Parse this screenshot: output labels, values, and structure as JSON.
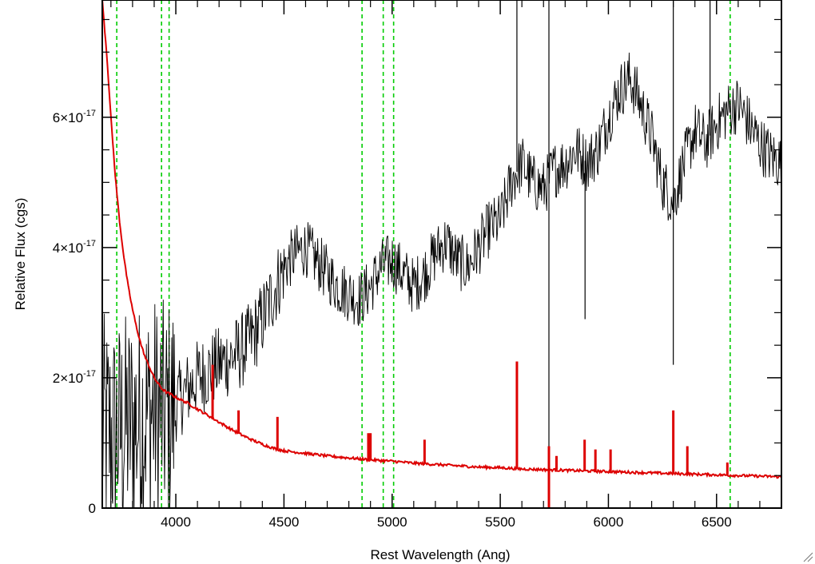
{
  "chart_data": {
    "type": "line",
    "title": "",
    "xlabel": "Rest Wavelength (Ang)",
    "ylabel": "Relative Flux (cgs)",
    "xlim": [
      3660,
      6800
    ],
    "ylim": [
      0,
      7.8e-17
    ],
    "x_ticks": [
      4000,
      4500,
      5000,
      5500,
      6000,
      6500
    ],
    "y_ticks": [
      {
        "value": 0,
        "mantissa": "0",
        "exponent": ""
      },
      {
        "value": 2e-17,
        "mantissa": "2×10",
        "exponent": "-17"
      },
      {
        "value": 4e-17,
        "mantissa": "4×10",
        "exponent": "-17"
      },
      {
        "value": 6e-17,
        "mantissa": "6×10",
        "exponent": "-17"
      }
    ],
    "grid": false,
    "colors": {
      "spectrum": "#000000",
      "error": "#dd0000",
      "lines": "#00cc00"
    },
    "reference_lines": [
      3727,
      3934,
      3969,
      4861,
      4959,
      5007,
      6563
    ],
    "series": [
      {
        "style": "black-noisy",
        "x": [
          3670,
          3700,
          3750,
          3800,
          3850,
          3900,
          3950,
          4000,
          4050,
          4100,
          4150,
          4200,
          4250,
          4300,
          4350,
          4400,
          4450,
          4500,
          4550,
          4600,
          4650,
          4700,
          4750,
          4800,
          4850,
          4900,
          4950,
          5000,
          5050,
          5100,
          5150,
          5200,
          5250,
          5300,
          5350,
          5400,
          5450,
          5500,
          5550,
          5600,
          5650,
          5700,
          5750,
          5800,
          5850,
          5900,
          5950,
          6000,
          6050,
          6100,
          6150,
          6200,
          6250,
          6300,
          6350,
          6400,
          6450,
          6500,
          6550,
          6600,
          6650,
          6700,
          6750,
          6800
        ],
        "y": [
          1.2e-17,
          1.1e-17,
          1.2e-17,
          1.3e-17,
          1.4e-17,
          1.5e-17,
          1.4e-17,
          1.6e-17,
          1.8e-17,
          2e-17,
          2.1e-17,
          2.2e-17,
          2.3e-17,
          2.4e-17,
          2.6e-17,
          2.9e-17,
          3.3e-17,
          3.7e-17,
          3.9e-17,
          4e-17,
          3.8e-17,
          3.6e-17,
          3.4e-17,
          3.3e-17,
          3.2e-17,
          3.4e-17,
          3.7e-17,
          3.8e-17,
          3.6e-17,
          3.4e-17,
          3.6e-17,
          3.9e-17,
          4.1e-17,
          3.8e-17,
          3.7e-17,
          4e-17,
          4.3e-17,
          4.4e-17,
          5e-17,
          5.3e-17,
          5e-17,
          4.9e-17,
          5.2e-17,
          5.3e-17,
          5.5e-17,
          5.3e-17,
          5.5e-17,
          6e-17,
          6.4e-17,
          6.6e-17,
          6.2e-17,
          5.7e-17,
          5e-17,
          4.7e-17,
          5.3e-17,
          5.8e-17,
          5.6e-17,
          5.9e-17,
          6.1e-17,
          6.2e-17,
          5.9e-17,
          5.6e-17,
          5.4e-17,
          5.3e-17
        ],
        "spikes": [
          {
            "x": 5577,
            "y": 8.5e-17
          },
          {
            "x": 5725,
            "y": 8e-17
          },
          {
            "x": 5725,
            "y": -5e-18
          },
          {
            "x": 5892,
            "y": 2.9e-17
          },
          {
            "x": 6300,
            "y": 8e-17
          },
          {
            "x": 6300,
            "y": 2.2e-17
          },
          {
            "x": 6470,
            "y": 8.5e-17
          }
        ]
      },
      {
        "style": "red-error",
        "x": [
          3660,
          3680,
          3700,
          3720,
          3740,
          3760,
          3780,
          3800,
          3820,
          3840,
          3860,
          3880,
          3900,
          3920,
          3940,
          3960,
          3980,
          4000,
          4050,
          4100,
          4150,
          4200,
          4250,
          4300,
          4350,
          4400,
          4450,
          4500,
          4600,
          4700,
          4800,
          4900,
          5000,
          5100,
          5200,
          5300,
          5400,
          5500,
          5600,
          5700,
          5800,
          5900,
          6000,
          6100,
          6200,
          6300,
          6400,
          6500,
          6600,
          6700,
          6800
        ],
        "y": [
          7.8e-17,
          7e-17,
          6e-17,
          5.1e-17,
          4.4e-17,
          3.85e-17,
          3.4e-17,
          3.05e-17,
          2.75e-17,
          2.5e-17,
          2.3e-17,
          2.15e-17,
          2e-17,
          1.9e-17,
          1.82e-17,
          1.77e-17,
          1.74e-17,
          1.7e-17,
          1.62e-17,
          1.52e-17,
          1.42e-17,
          1.32e-17,
          1.22e-17,
          1.13e-17,
          1.05e-17,
          9.8e-18,
          9.2e-18,
          8.8e-18,
          8.4e-18,
          8e-18,
          7.7e-18,
          7.4e-18,
          7.2e-18,
          6.9e-18,
          6.7e-18,
          6.5e-18,
          6.3e-18,
          6.2e-18,
          6e-18,
          5.9e-18,
          5.8e-18,
          5.7e-18,
          5.6e-18,
          5.5e-18,
          5.4e-18,
          5.3e-18,
          5.2e-18,
          5.1e-18,
          5e-18,
          4.9e-18,
          4.8e-18
        ],
        "spikes": [
          {
            "x": 4170,
            "y": 2.2e-17
          },
          {
            "x": 4290,
            "y": 1.5e-17
          },
          {
            "x": 4470,
            "y": 1.4e-17
          },
          {
            "x": 4890,
            "y": 1.15e-17
          },
          {
            "x": 4900,
            "y": 1.15e-17
          },
          {
            "x": 5150,
            "y": 1.05e-17
          },
          {
            "x": 5577,
            "y": 2.25e-17
          },
          {
            "x": 5725,
            "y": 9.5e-18
          },
          {
            "x": 5725,
            "y": -1e-18
          },
          {
            "x": 5760,
            "y": 8e-18
          },
          {
            "x": 5890,
            "y": 1.05e-17
          },
          {
            "x": 5940,
            "y": 9e-18
          },
          {
            "x": 6010,
            "y": 9e-18
          },
          {
            "x": 6300,
            "y": 1.5e-17
          },
          {
            "x": 6365,
            "y": 9.5e-18
          },
          {
            "x": 6550,
            "y": 7e-18
          }
        ]
      }
    ]
  }
}
